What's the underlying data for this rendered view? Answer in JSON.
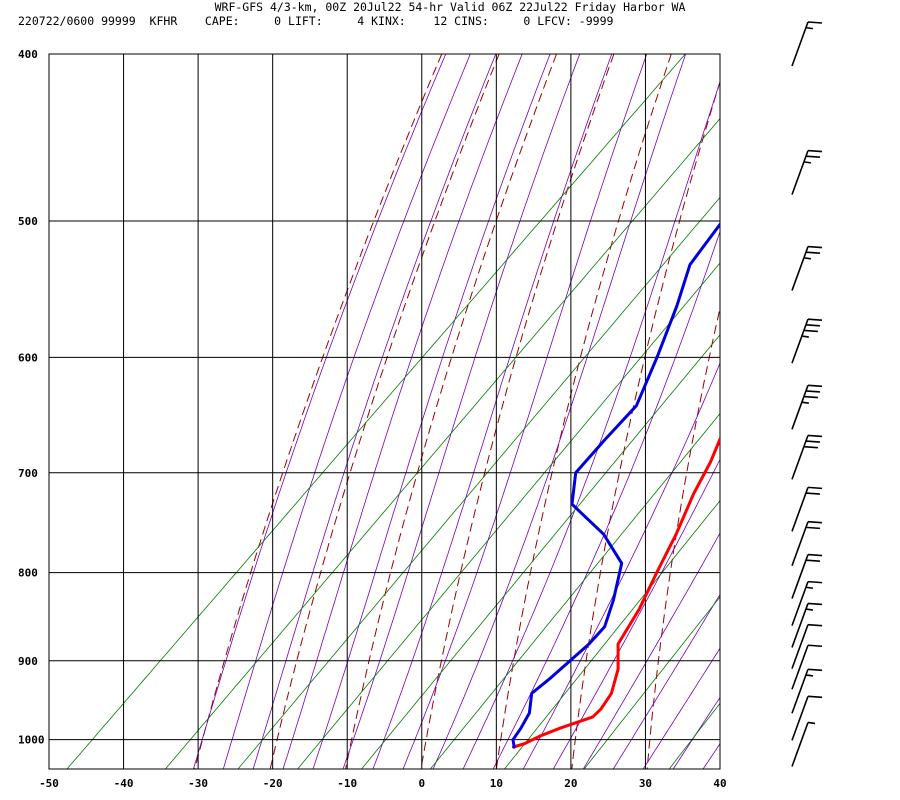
{
  "header": {
    "title": "WRF-GFS 4/3-km, 00Z 20Jul22 54-hr Valid 06Z 22Jul22 Friday Harbor WA",
    "stats": "220722/0600 99999  KFHR    CAPE:     0 LIFT:     4 KINX:    12 CINS:     0 LFCV: -9999"
  },
  "chart_data": {
    "type": "line",
    "chart_kind": "skew-T log-P sounding",
    "title": "WRF-GFS 4/3-km, 00Z 20Jul22 54-hr Valid 06Z 22Jul22 Friday Harbor WA",
    "xlabel": "",
    "ylabel": "",
    "x_ticks": [
      -50,
      -40,
      -30,
      -20,
      -10,
      0,
      10,
      20,
      30,
      40
    ],
    "y_ticks": [
      400,
      500,
      600,
      700,
      800,
      900,
      1000
    ],
    "xlim": [
      -50,
      40
    ],
    "ylim": [
      1040,
      400
    ],
    "y_scale": "log",
    "grid": true,
    "colors": {
      "temperature": "#ff0000",
      "dewpoint": "#0000dd",
      "dry_adiabat": "#990000",
      "moist_adiabat": "#7700bb",
      "mixing_ratio": "#007700",
      "grid": "#000000",
      "wind": "#000000"
    },
    "series": [
      {
        "key": "temperature",
        "points": [
          [
            415,
            -26
          ],
          [
            440,
            -23.4
          ],
          [
            470,
            -21.2
          ],
          [
            500,
            -17.5
          ],
          [
            530,
            -15.3
          ],
          [
            560,
            -12.6
          ],
          [
            590,
            -9.4
          ],
          [
            620,
            -6.6
          ],
          [
            650,
            -3.6
          ],
          [
            690,
            -0.4
          ],
          [
            720,
            1.4
          ],
          [
            760,
            4.2
          ],
          [
            800,
            6.5
          ],
          [
            840,
            8.8
          ],
          [
            880,
            10.4
          ],
          [
            910,
            13.6
          ],
          [
            940,
            15.8
          ],
          [
            960,
            16.4
          ],
          [
            970,
            16.3
          ],
          [
            985,
            13.3
          ],
          [
            995,
            11.7
          ],
          [
            1005,
            10.6
          ],
          [
            1010,
            9.5
          ]
        ]
      },
      {
        "key": "dewpoint",
        "points": [
          [
            412,
            -37.8
          ],
          [
            440,
            -33.8
          ],
          [
            470,
            -30.8
          ],
          [
            500,
            -29.5
          ],
          [
            530,
            -28.3
          ],
          [
            560,
            -24.8
          ],
          [
            600,
            -20.9
          ],
          [
            640,
            -17.5
          ],
          [
            670,
            -17.4
          ],
          [
            700,
            -17.1
          ],
          [
            730,
            -13.6
          ],
          [
            760,
            -5.5
          ],
          [
            790,
            0.6
          ],
          [
            830,
            4.2
          ],
          [
            860,
            6.4
          ],
          [
            880,
            6.5
          ],
          [
            920,
            5.7
          ],
          [
            940,
            5.1
          ],
          [
            965,
            7.3
          ],
          [
            985,
            8.1
          ],
          [
            1000,
            8.5
          ],
          [
            1010,
            9.6
          ]
        ]
      }
    ],
    "wind_barbs": [
      {
        "p": 400,
        "kt": 15
      },
      {
        "p": 475,
        "kt": 25
      },
      {
        "p": 540,
        "kt": 25
      },
      {
        "p": 595,
        "kt": 35
      },
      {
        "p": 650,
        "kt": 35
      },
      {
        "p": 695,
        "kt": 30
      },
      {
        "p": 745,
        "kt": 20
      },
      {
        "p": 780,
        "kt": 20
      },
      {
        "p": 815,
        "kt": 20
      },
      {
        "p": 845,
        "kt": 15
      },
      {
        "p": 870,
        "kt": 15
      },
      {
        "p": 895,
        "kt": 10
      },
      {
        "p": 920,
        "kt": 10
      },
      {
        "p": 950,
        "kt": 15
      },
      {
        "p": 985,
        "kt": 10
      },
      {
        "p": 1020,
        "kt": 5
      }
    ]
  }
}
